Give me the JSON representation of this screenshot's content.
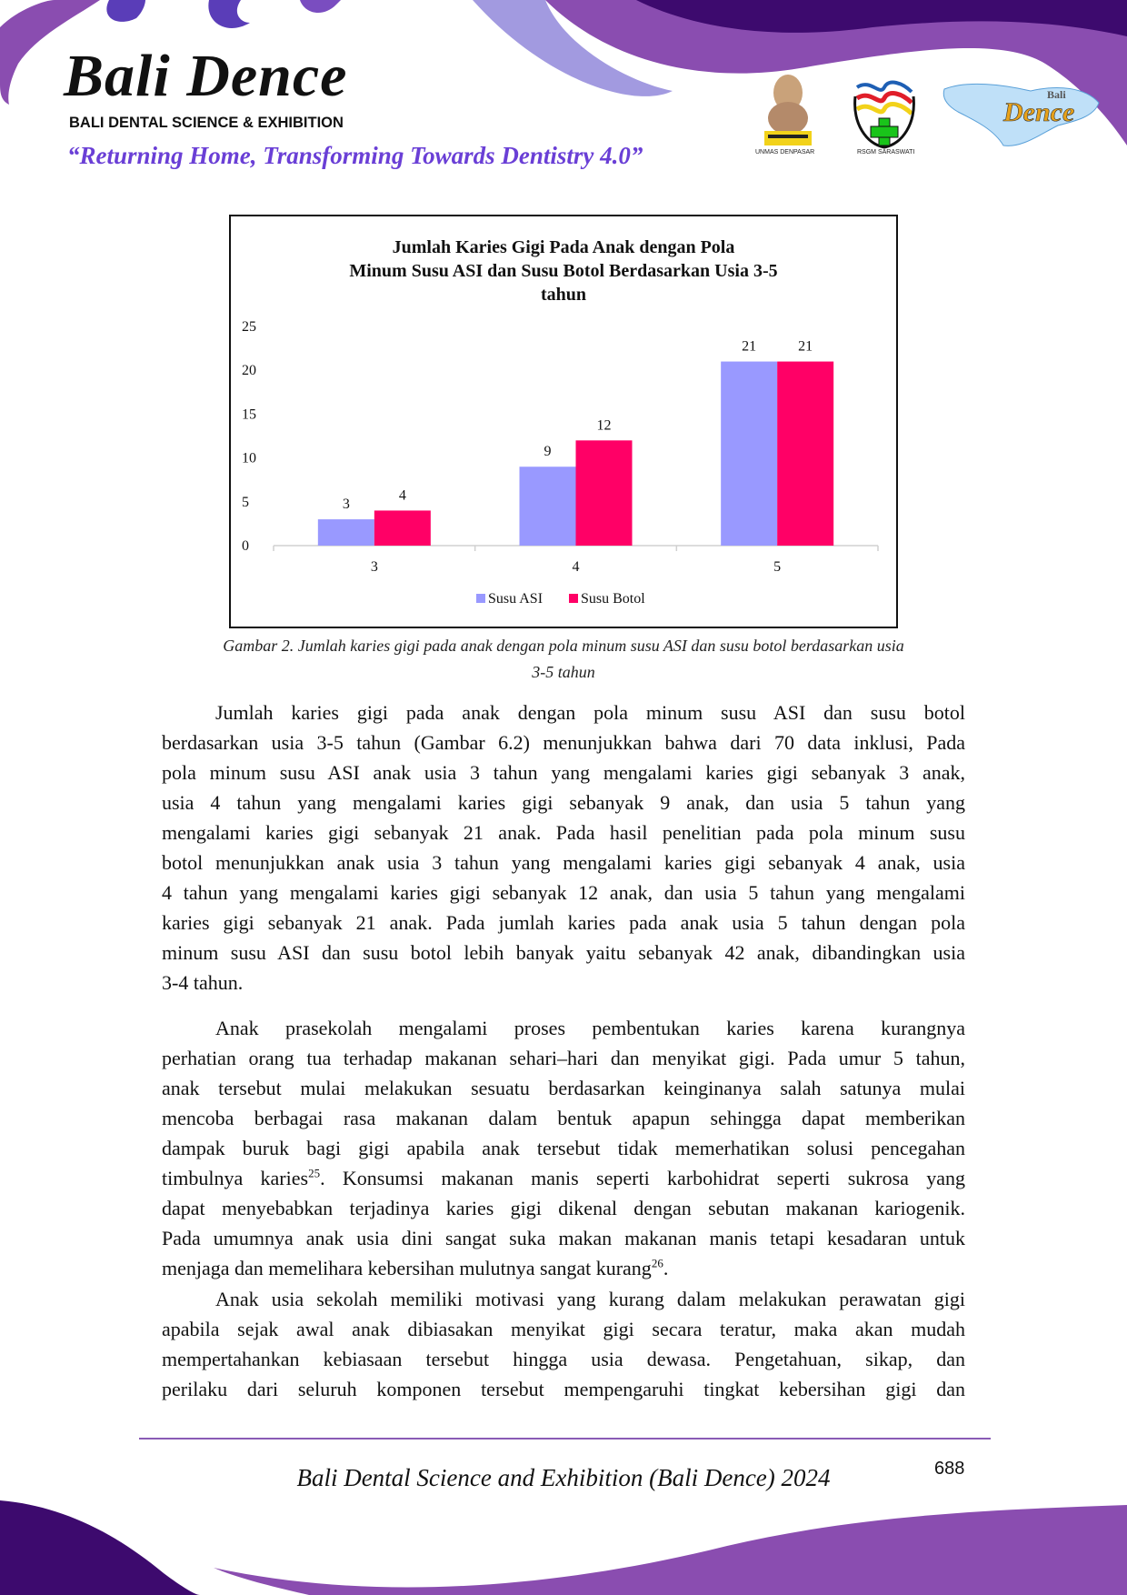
{
  "header": {
    "brand_title": "Bali Dence",
    "brand_subtitle": "BALI DENTAL SCIENCE & EXHIBITION",
    "tagline": "“Returning Home, Transforming Towards Dentistry 4.0”",
    "logos": [
      {
        "name": "unmas-denpasar-logo",
        "caption": "UNMAS DENPASAR"
      },
      {
        "name": "rsgm-saraswati-logo",
        "caption": "RSGM SARASWATI"
      },
      {
        "name": "bali-dence-logo",
        "caption": "Bali Dence"
      }
    ],
    "colors": {
      "dark_purple": "#3d0a6e",
      "purple": "#8a4db0",
      "lavender": "#a29ae0"
    }
  },
  "chart_data": {
    "type": "bar",
    "title": "Jumlah Karies Gigi Pada Anak dengan Pola Minum Susu ASI dan Susu Botol Berdasarkan Usia 3-5 tahun",
    "title_lines": [
      "Jumlah Karies Gigi Pada Anak dengan Pola",
      "Minum Susu ASI dan Susu Botol Berdasarkan Usia 3-5",
      "tahun"
    ],
    "categories": [
      "3",
      "4",
      "5"
    ],
    "series": [
      {
        "name": "Susu ASI",
        "values": [
          3,
          9,
          21
        ],
        "color": "#9999ff"
      },
      {
        "name": "Susu Botol",
        "values": [
          4,
          12,
          21
        ],
        "color": "#ff0066"
      }
    ],
    "yticks": [
      "0",
      "5",
      "10",
      "15",
      "20",
      "25"
    ],
    "ylim": [
      0,
      25
    ],
    "xlabel": "",
    "ylabel": "",
    "grid": false,
    "data_labels": true,
    "legend": "bottom"
  },
  "caption": {
    "line1": "Gambar 2. Jumlah karies gigi pada anak dengan pola minum susu ASI dan susu botol berdasarkan usia",
    "line2": "3-5 tahun"
  },
  "body": {
    "p1": [
      "Jumlah karies gigi pada anak dengan pola minum susu ASI dan susu botol",
      "berdasarkan usia 3-5 tahun (Gambar 6.2) menunjukkan bahwa dari 70 data inklusi, Pada",
      "pola minum susu ASI anak usia 3 tahun yang mengalami karies gigi sebanyak 3 anak,",
      "usia 4 tahun yang mengalami karies gigi sebanyak 9 anak, dan usia 5 tahun yang",
      "mengalami karies gigi sebanyak 21 anak. Pada hasil penelitian pada pola minum susu",
      "botol menunjukkan anak usia 3 tahun yang mengalami karies gigi sebanyak 4 anak, usia",
      "4 tahun yang mengalami karies gigi sebanyak 12 anak, dan usia 5 tahun yang mengalami",
      "karies gigi sebanyak 21 anak. Pada jumlah karies pada anak usia 5 tahun dengan pola",
      "minum susu ASI dan susu botol lebih banyak yaitu sebanyak 42 anak, dibandingkan usia",
      "3-4 tahun."
    ],
    "p2": [
      "Anak prasekolah mengalami proses pembentukan karies karena kurangnya",
      "perhatian orang tua terhadap makanan sehari–hari dan menyikat gigi. Pada umur 5 tahun,",
      "anak tersebut mulai melakukan sesuatu berdasarkan keinginanya salah satunya mulai",
      "mencoba berbagai rasa makanan dalam bentuk apapun sehingga dapat memberikan",
      "dampak buruk bagi gigi apabila anak tersebut tidak memerhatikan solusi pencegahan",
      {
        "before": "timbulnya karies",
        "sup": "25",
        "after": ". Konsumsi makanan manis seperti karbohidrat seperti sukrosa yang"
      },
      "dapat menyebabkan terjadinya karies gigi dikenal dengan sebutan makanan kariogenik.",
      "Pada umumnya anak usia dini sangat suka makan makanan manis tetapi kesadaran untuk",
      {
        "before": "menjaga dan memelihara kebersihan mulutnya sangat kurang",
        "sup": "26",
        "after": "."
      }
    ],
    "p3": [
      "Anak usia sekolah memiliki motivasi yang kurang dalam melakukan perawatan gigi",
      "apabila sejak awal anak dibiasakan menyikat gigi secara teratur, maka akan mudah",
      "mempertahankan kebiasaan tersebut hingga usia dewasa. Pengetahuan, sikap, dan",
      "perilaku dari seluruh komponen tersebut mempengaruhi tingkat kebersihan gigi dan"
    ]
  },
  "footer": {
    "text": "Bali Dental Science and Exhibition (Bali Dence) 2024",
    "page_number": "688"
  }
}
